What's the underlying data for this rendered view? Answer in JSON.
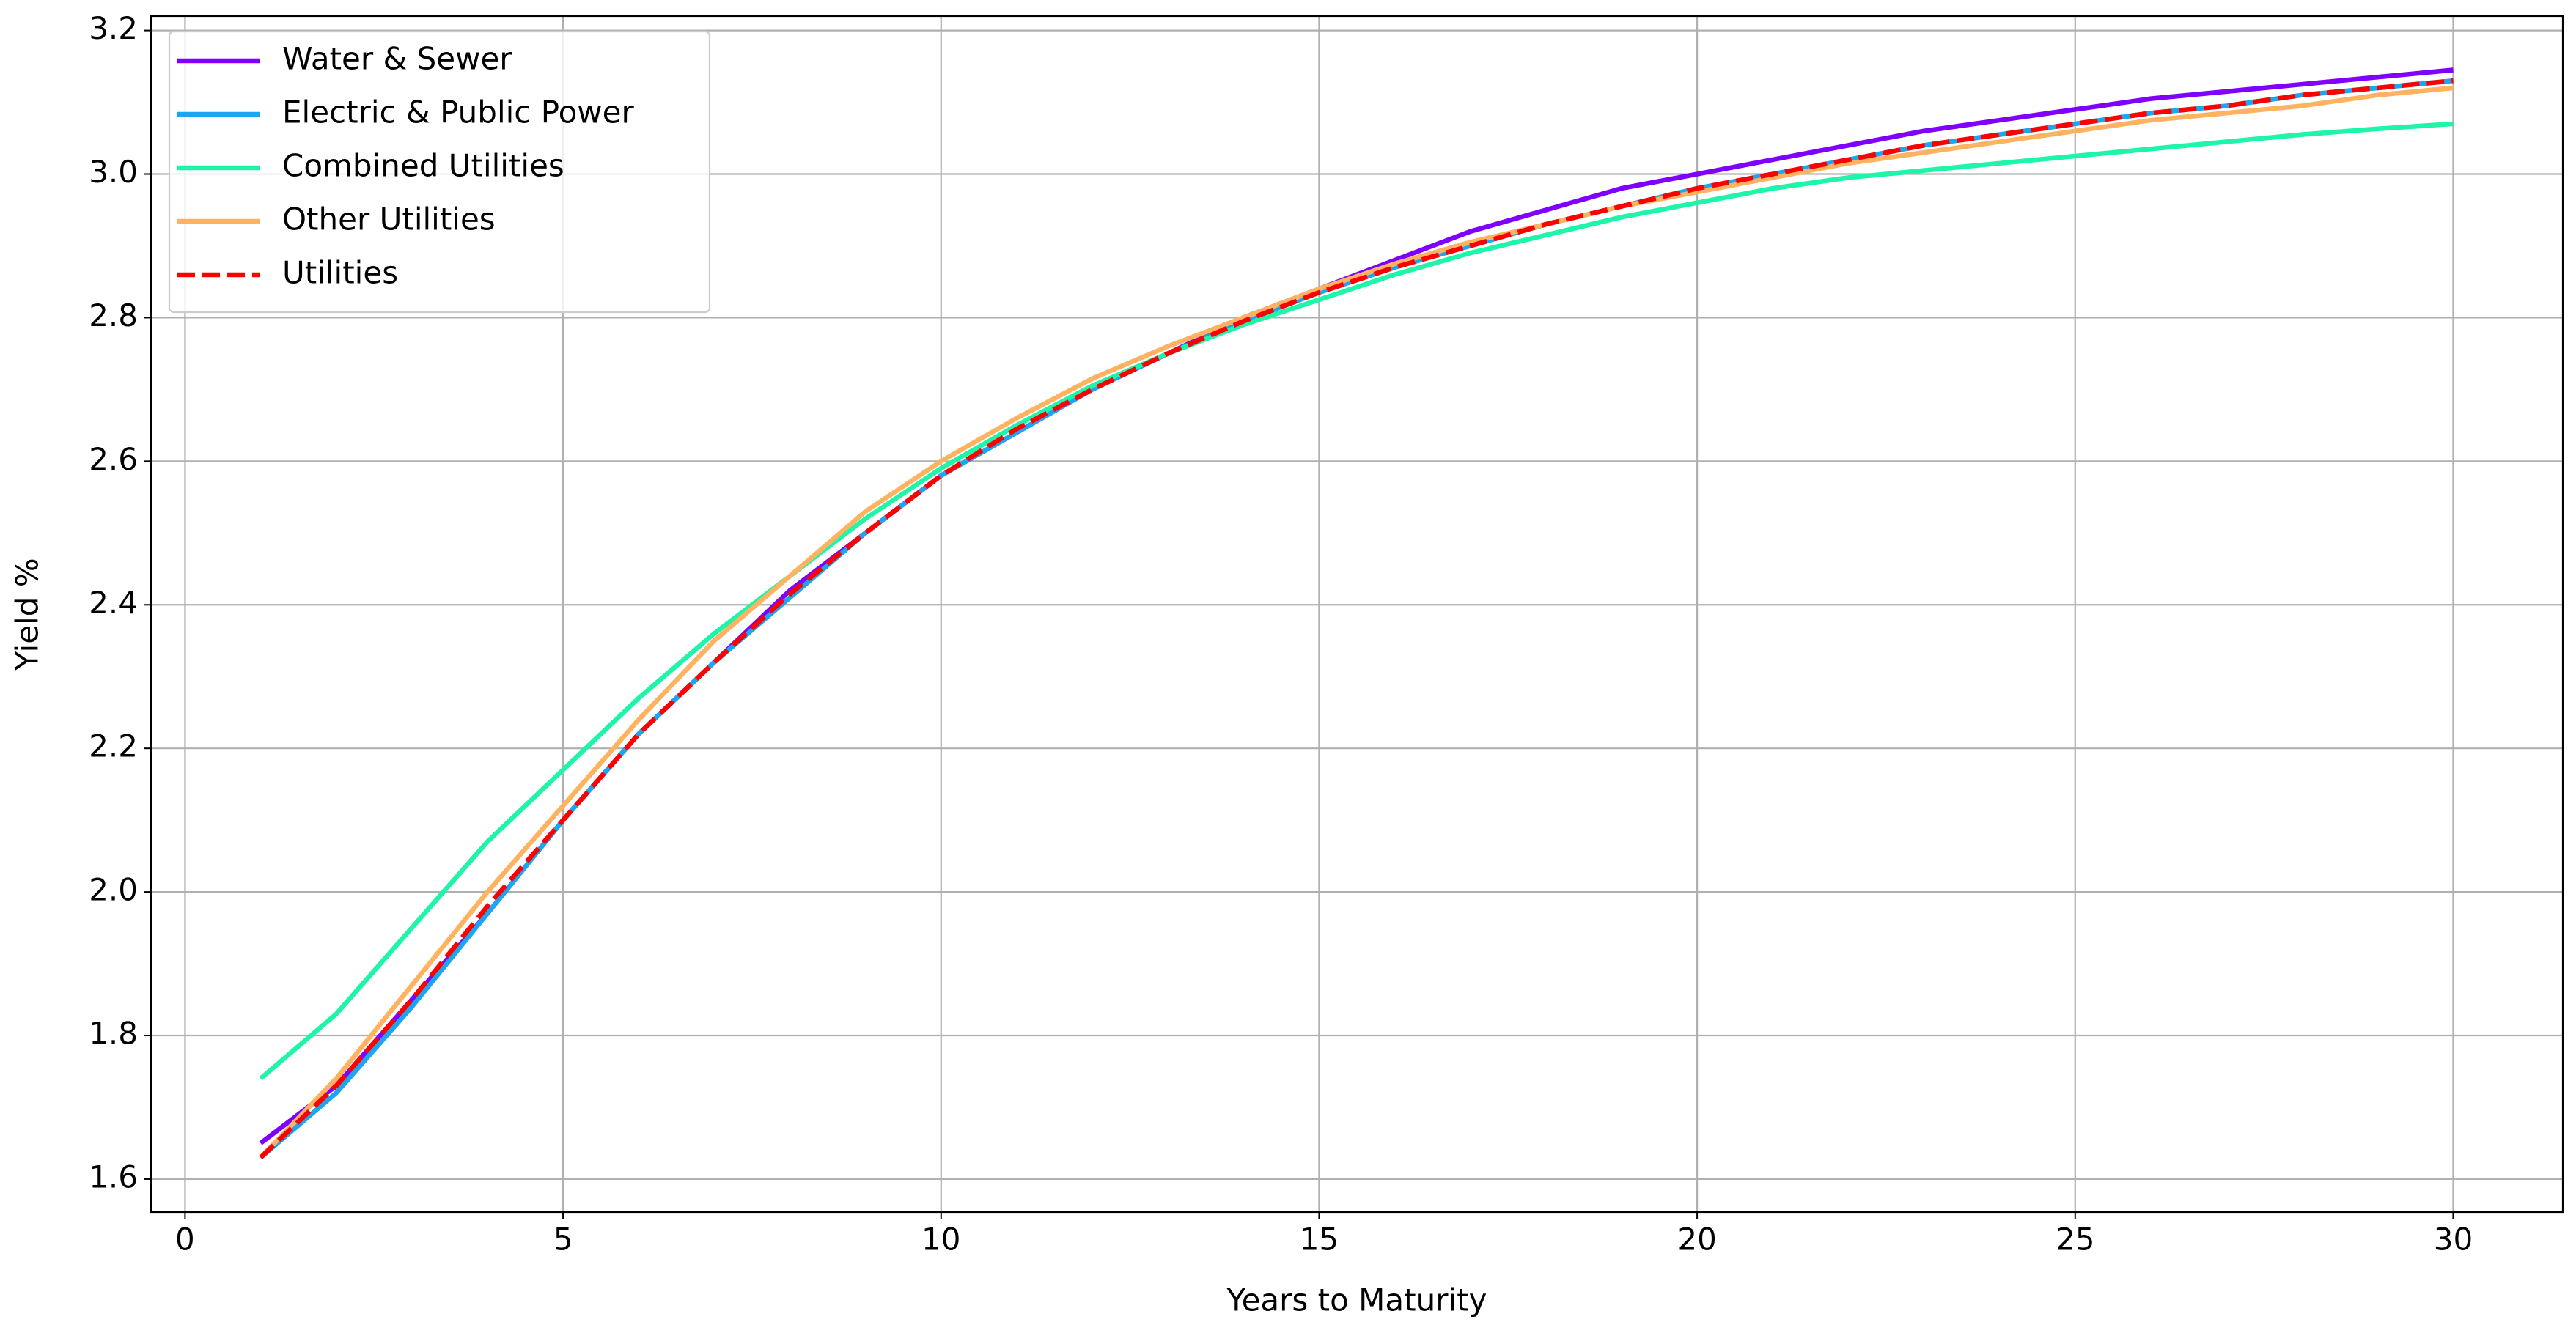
{
  "chart_data": {
    "type": "line",
    "x_label": "Years to Maturity",
    "y_label": "Yield %",
    "x": [
      1,
      2,
      3,
      4,
      5,
      6,
      7,
      8,
      9,
      10,
      11,
      12,
      13,
      14,
      15,
      16,
      17,
      18,
      19,
      20,
      21,
      22,
      23,
      24,
      25,
      26,
      27,
      28,
      29,
      30
    ],
    "series": [
      {
        "name": "Water & Sewer",
        "color": "#8000ff",
        "values": [
          1.65,
          1.73,
          1.85,
          1.97,
          2.1,
          2.22,
          2.32,
          2.42,
          2.5,
          2.58,
          2.64,
          2.7,
          2.75,
          2.8,
          2.84,
          2.88,
          2.92,
          2.95,
          2.98,
          3.0,
          3.02,
          3.04,
          3.06,
          3.075,
          3.09,
          3.105,
          3.115,
          3.125,
          3.135,
          3.145
        ]
      },
      {
        "name": "Electric & Public Power",
        "color": "#1aa6f0",
        "values": [
          1.63,
          1.72,
          1.84,
          1.97,
          2.1,
          2.22,
          2.32,
          2.41,
          2.5,
          2.58,
          2.64,
          2.7,
          2.75,
          2.795,
          2.835,
          2.87,
          2.9,
          2.93,
          2.955,
          2.98,
          3.0,
          3.02,
          3.04,
          3.055,
          3.07,
          3.085,
          3.095,
          3.11,
          3.12,
          3.13
        ]
      },
      {
        "name": "Combined Utilities",
        "color": "#1ef5a8",
        "values": [
          1.74,
          1.83,
          1.95,
          2.07,
          2.17,
          2.27,
          2.36,
          2.44,
          2.52,
          2.59,
          2.65,
          2.705,
          2.75,
          2.79,
          2.825,
          2.86,
          2.89,
          2.915,
          2.94,
          2.96,
          2.98,
          2.995,
          3.005,
          3.015,
          3.025,
          3.035,
          3.045,
          3.055,
          3.063,
          3.07
        ]
      },
      {
        "name": "Other Utilities",
        "color": "#ffb360",
        "values": [
          1.63,
          1.74,
          1.87,
          2.0,
          2.12,
          2.24,
          2.35,
          2.44,
          2.53,
          2.6,
          2.66,
          2.715,
          2.76,
          2.8,
          2.84,
          2.875,
          2.905,
          2.93,
          2.955,
          2.975,
          2.995,
          3.015,
          3.03,
          3.045,
          3.06,
          3.075,
          3.085,
          3.095,
          3.11,
          3.12
        ]
      },
      {
        "name": "Utilities",
        "color": "#ff0000",
        "dashed": true,
        "values": [
          1.63,
          1.73,
          1.85,
          1.98,
          2.1,
          2.22,
          2.32,
          2.415,
          2.5,
          2.58,
          2.645,
          2.7,
          2.75,
          2.795,
          2.835,
          2.87,
          2.9,
          2.93,
          2.955,
          2.98,
          3.0,
          3.02,
          3.04,
          3.055,
          3.07,
          3.085,
          3.095,
          3.11,
          3.12,
          3.13
        ]
      }
    ],
    "xlim": [
      -0.45,
      31.45
    ],
    "xticks": [
      0,
      5,
      10,
      15,
      20,
      25,
      30
    ],
    "ylim": [
      1.554,
      3.22
    ],
    "yticks": [
      1.6,
      1.8,
      {
        "value": 2,
        "label": "2.0"
      },
      2.2,
      2.4,
      2.6,
      2.8,
      {
        "value": 3,
        "label": "3.0"
      },
      3.2
    ],
    "grid": true,
    "legend": "upper left"
  }
}
